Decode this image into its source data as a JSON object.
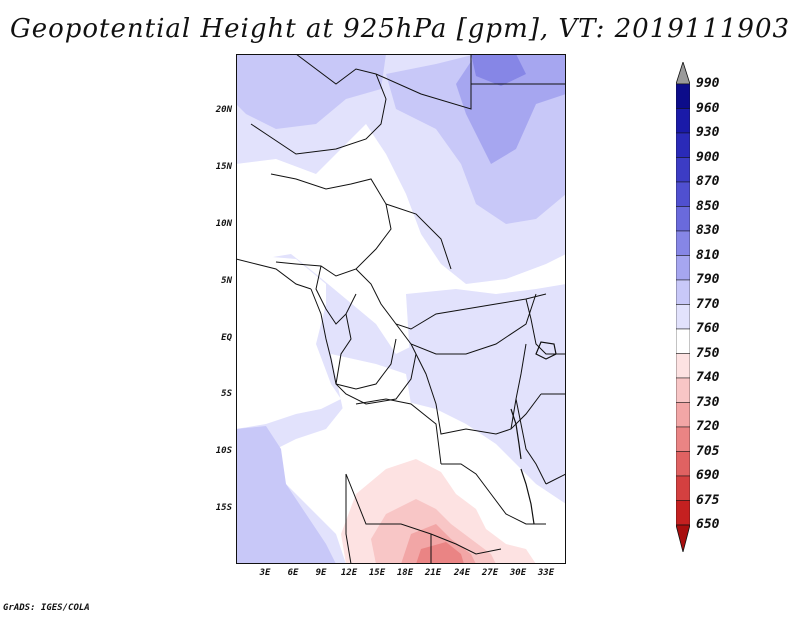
{
  "title": "Geopotential Height at 925hPa [gpm], VT: 2019111903",
  "footer": "GrADS: IGES/COLA",
  "map": {
    "lat_labels": [
      "20N",
      "15N",
      "10N",
      "5N",
      "EQ",
      "5S",
      "10S",
      "15S"
    ],
    "lon_labels": [
      "3E",
      "6E",
      "9E",
      "12E",
      "15E",
      "18E",
      "21E",
      "24E",
      "27E",
      "30E",
      "33E"
    ]
  },
  "colorbar": {
    "levels": [
      "990",
      "960",
      "930",
      "900",
      "870",
      "850",
      "830",
      "810",
      "790",
      "770",
      "760",
      "750",
      "740",
      "730",
      "720",
      "705",
      "690",
      "675",
      "650"
    ],
    "colors": [
      "#9a9a9a",
      "#0c0c8a",
      "#1a1aa8",
      "#2a2ab8",
      "#3c3cc4",
      "#5050d0",
      "#6a6adc",
      "#8686e6",
      "#a6a6f0",
      "#c8c8f8",
      "#e2e2fc",
      "#ffffff",
      "#fde2e2",
      "#f8c6c6",
      "#f2a6a6",
      "#ea8484",
      "#e06262",
      "#d44040",
      "#c42020",
      "#a80e0e"
    ]
  }
}
